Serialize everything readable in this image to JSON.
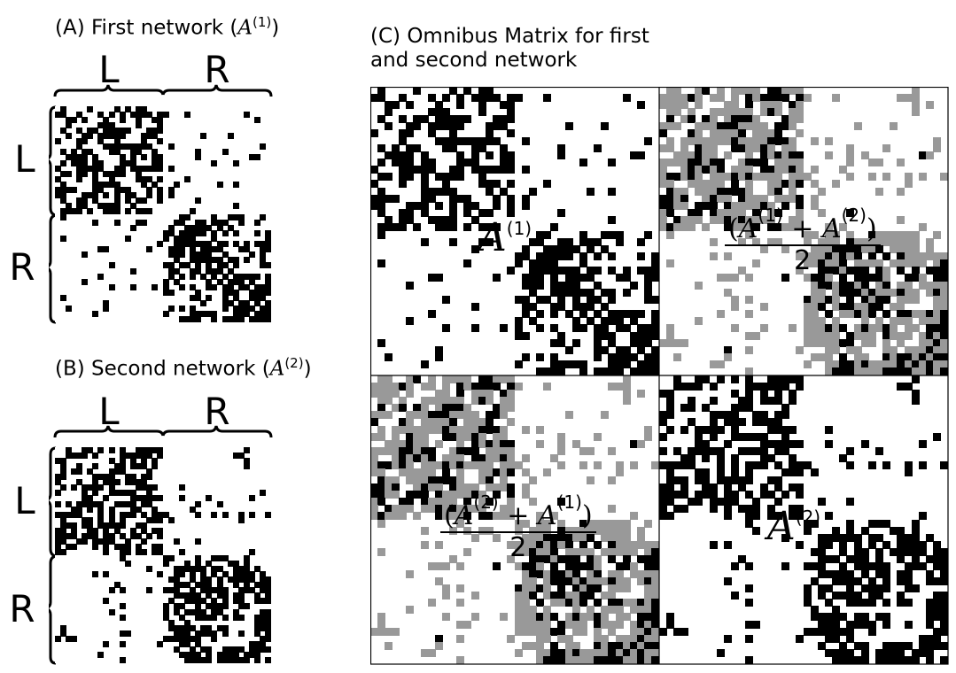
{
  "panelA": {
    "title_prefix": "(A) First network (",
    "title_var": "A",
    "title_sup": "(1)",
    "title_suffix": ")",
    "top_labels": [
      "L",
      "R"
    ],
    "side_labels": [
      "L",
      "R"
    ]
  },
  "panelB": {
    "title_prefix": "(B) Second network (",
    "title_var": "A",
    "title_sup": "(2)",
    "title_suffix": ")",
    "top_labels": [
      "L",
      "R"
    ],
    "side_labels": [
      "L",
      "R"
    ]
  },
  "panelC": {
    "title_line1": "(C) Omnibus Matrix for first",
    "title_line2": "and second network",
    "labels": {
      "top_left": {
        "var": "A",
        "sup": "(1)"
      },
      "top_right": {
        "num_pre": "(",
        "a1": "A",
        "s1": "(1)",
        "plus": " + ",
        "a2": "A",
        "s2": "(2)",
        "num_post": ")",
        "den": "2"
      },
      "bottom_left": {
        "num_pre": "(",
        "a1": "A",
        "s1": "(2)",
        "plus": " + ",
        "a2": "A",
        "s2": "(1)",
        "num_post": ")",
        "den": "2"
      },
      "bottom_right": {
        "var": "A",
        "sup": "(2)"
      }
    }
  },
  "colors": {
    "edge": "#000000",
    "averaged_edge": "#999999",
    "background": "#ffffff"
  }
}
